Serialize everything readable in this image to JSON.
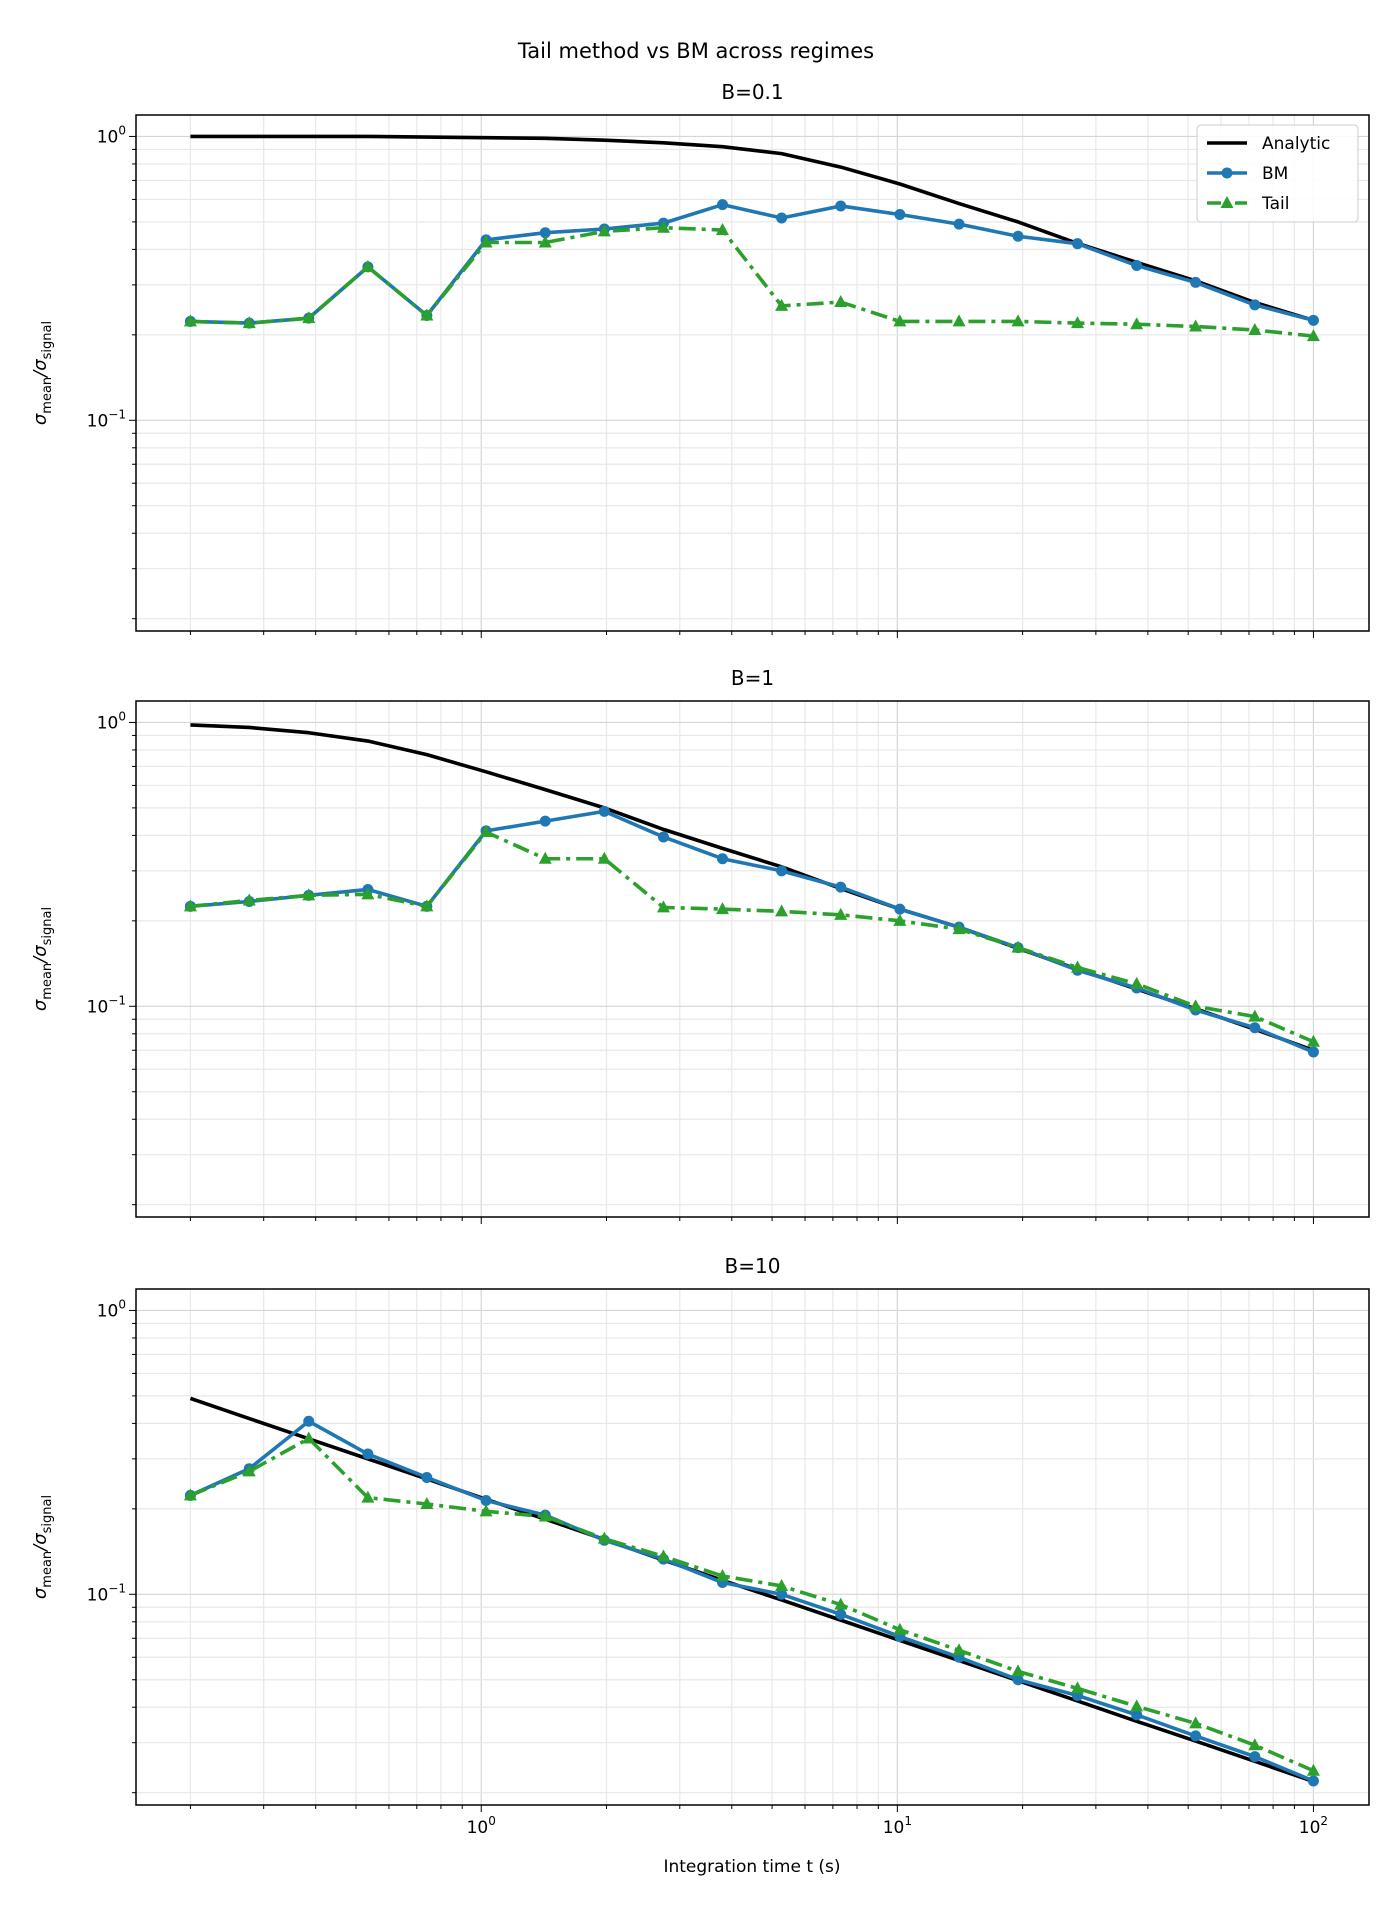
{
  "chart_data": {
    "title": "Tail method vs BM across regimes",
    "xlabel": "Integration time t (s)",
    "ylabel_main": "σ",
    "ylabel_sub1": "mean",
    "ylabel_slash": "/σ",
    "ylabel_sub2": "signal",
    "xscale": "log",
    "yscale": "log",
    "xlim": [
      0.148,
      136
    ],
    "ylim": [
      0.0181,
      1.19
    ],
    "grid": "major and minor",
    "legend_placement": "upper right (first panel only)",
    "x_ticks": [
      {
        "value": 1,
        "label": "10",
        "exp": "0"
      },
      {
        "value": 10,
        "label": "10",
        "exp": "1"
      },
      {
        "value": 100,
        "label": "10",
        "exp": "2"
      }
    ],
    "y_ticks": [
      {
        "value": 1,
        "label": "10",
        "exp": "0"
      },
      {
        "value": 0.1,
        "label": "10",
        "exp": "−1"
      }
    ],
    "x": [
      0.2,
      0.277,
      0.385,
      0.534,
      0.74,
      1.027,
      1.425,
      1.976,
      2.741,
      3.8,
      5.27,
      7.31,
      10.14,
      14.07,
      19.5,
      27.1,
      37.6,
      52.1,
      72.3,
      100
    ],
    "series_styles": [
      {
        "name": "Analytic",
        "color": "#000000",
        "marker": "none",
        "dash": "solid"
      },
      {
        "name": "BM",
        "color": "#1f77b4",
        "marker": "circle",
        "dash": "solid"
      },
      {
        "name": "Tail",
        "color": "#2ca02c",
        "marker": "triangle",
        "dash": "dashdot"
      }
    ],
    "type": "line",
    "panels": [
      {
        "title": "B=0.1",
        "series": [
          {
            "name": "Analytic",
            "values": [
              1.0,
              1.0,
              1.0,
              1.0,
              0.995,
              0.99,
              0.985,
              0.97,
              0.95,
              0.92,
              0.87,
              0.78,
              0.68,
              0.58,
              0.5,
              0.42,
              0.36,
              0.31,
              0.26,
              0.225
            ]
          },
          {
            "name": "BM",
            "values": [
              0.223,
              0.22,
              0.229,
              0.347,
              0.234,
              0.432,
              0.458,
              0.472,
              0.495,
              0.575,
              0.516,
              0.569,
              0.531,
              0.491,
              0.445,
              0.419,
              0.351,
              0.306,
              0.255,
              0.225
            ]
          },
          {
            "name": "Tail",
            "values": [
              0.223,
              0.22,
              0.229,
              0.347,
              0.234,
              0.423,
              0.423,
              0.463,
              0.477,
              0.468,
              0.253,
              0.261,
              0.223,
              0.223,
              0.223,
              0.22,
              0.218,
              0.214,
              0.208,
              0.198
            ]
          }
        ]
      },
      {
        "title": "B=1",
        "series": [
          {
            "name": "Analytic",
            "values": [
              0.98,
              0.96,
              0.92,
              0.86,
              0.77,
              0.67,
              0.58,
              0.5,
              0.42,
              0.36,
              0.31,
              0.26,
              0.22,
              0.19,
              0.16,
              0.135,
              0.115,
              0.098,
              0.083,
              0.07
            ]
          },
          {
            "name": "BM",
            "values": [
              0.225,
              0.234,
              0.246,
              0.258,
              0.225,
              0.415,
              0.449,
              0.486,
              0.395,
              0.331,
              0.3,
              0.263,
              0.22,
              0.19,
              0.161,
              0.134,
              0.116,
              0.097,
              0.084,
              0.069
            ]
          },
          {
            "name": "Tail",
            "values": [
              0.225,
              0.236,
              0.246,
              0.248,
              0.225,
              0.411,
              0.331,
              0.331,
              0.223,
              0.22,
              0.216,
              0.21,
              0.2,
              0.187,
              0.161,
              0.137,
              0.12,
              0.1,
              0.092,
              0.075
            ]
          }
        ]
      },
      {
        "title": "B=10",
        "series": [
          {
            "name": "Analytic",
            "values": [
              0.49,
              0.416,
              0.353,
              0.3,
              0.255,
              0.216,
              0.184,
              0.156,
              0.132,
              0.112,
              0.0955,
              0.0811,
              0.0688,
              0.0584,
              0.0496,
              0.0421,
              0.0357,
              0.0304,
              0.0258,
              0.0219
            ]
          },
          {
            "name": "BM",
            "values": [
              0.223,
              0.277,
              0.407,
              0.312,
              0.258,
              0.214,
              0.19,
              0.155,
              0.133,
              0.11,
              0.1,
              0.085,
              0.071,
              0.06,
              0.05,
              0.044,
              0.0376,
              0.0317,
              0.0268,
              0.022
            ]
          },
          {
            "name": "Tail",
            "values": [
              0.223,
              0.271,
              0.354,
              0.219,
              0.208,
              0.196,
              0.188,
              0.157,
              0.136,
              0.116,
              0.107,
              0.092,
              0.075,
              0.0635,
              0.0535,
              0.0466,
              0.0403,
              0.0351,
              0.0294,
              0.0239
            ]
          }
        ]
      }
    ]
  }
}
